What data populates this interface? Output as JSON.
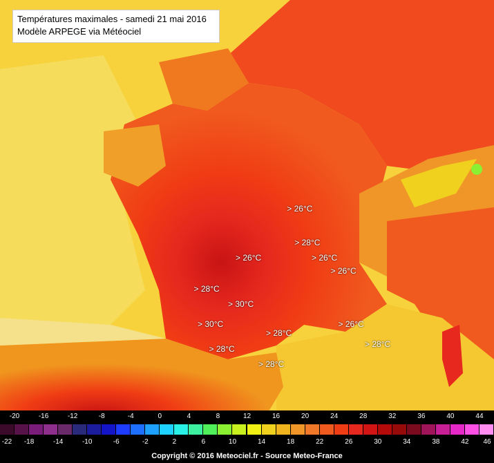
{
  "title": {
    "line1": "Températures maximales - samedi 21 mai 2016",
    "line2": "Modèle ARPEGE via Météociel"
  },
  "map_labels": [
    {
      "text": "> 26°C",
      "lon": 2.55,
      "lat": 46.9
    },
    {
      "text": "> 28°C",
      "lon": 2.75,
      "lat": 46.15
    },
    {
      "text": "> 26°C",
      "lon": 1.2,
      "lat": 45.8
    },
    {
      "text": "> 26°C",
      "lon": 3.2,
      "lat": 45.8
    },
    {
      "text": "> 26°C",
      "lon": 3.7,
      "lat": 45.5
    },
    {
      "text": "> 28°C",
      "lon": 0.1,
      "lat": 45.1
    },
    {
      "text": "> 30°C",
      "lon": 1.0,
      "lat": 44.75
    },
    {
      "text": "> 30°C",
      "lon": 0.2,
      "lat": 44.3
    },
    {
      "text": "> 28°C",
      "lon": 2.0,
      "lat": 44.1
    },
    {
      "text": "> 26°C",
      "lon": 3.9,
      "lat": 44.3
    },
    {
      "text": "> 28°C",
      "lon": 0.5,
      "lat": 43.75
    },
    {
      "text": "> 28°C",
      "lon": 1.8,
      "lat": 43.4
    },
    {
      "text": "> 28°C",
      "lon": 4.6,
      "lat": 43.85
    }
  ],
  "legend": {
    "top_ticks": [
      "-22",
      "-20",
      "-18",
      "-16",
      "-14",
      "-12",
      "-10",
      "-8",
      "-6",
      "-4",
      "-2",
      "0",
      "2",
      "4",
      "6",
      "8",
      "10",
      "12",
      "14",
      "16",
      "18",
      "20",
      "22",
      "24",
      "26",
      "28",
      "30",
      "32",
      "34",
      "36",
      "38",
      "40",
      "42",
      "44",
      "46"
    ],
    "colors": [
      "#3b0a2a",
      "#57124a",
      "#7a1c7a",
      "#8e2f8e",
      "#6a2a6a",
      "#2a2a7a",
      "#1c1c9e",
      "#1414c8",
      "#1e3cff",
      "#1e6eff",
      "#1ea0ff",
      "#1ed2ff",
      "#28f0e6",
      "#3cf0a0",
      "#50f05a",
      "#8cf032",
      "#c8f01e",
      "#f0f014",
      "#f0d21e",
      "#f0b41e",
      "#f09628",
      "#f07828",
      "#f05a1e",
      "#f03c14",
      "#e6281e",
      "#d21414",
      "#b40a0a",
      "#960a0a",
      "#7a0a1e",
      "#a0145a",
      "#c81e96",
      "#e628c8",
      "#ff50e6",
      "#ff8cf0"
    ]
  },
  "copyright": "Copyright © 2016 Meteociel.fr - Source Meteo-France"
}
